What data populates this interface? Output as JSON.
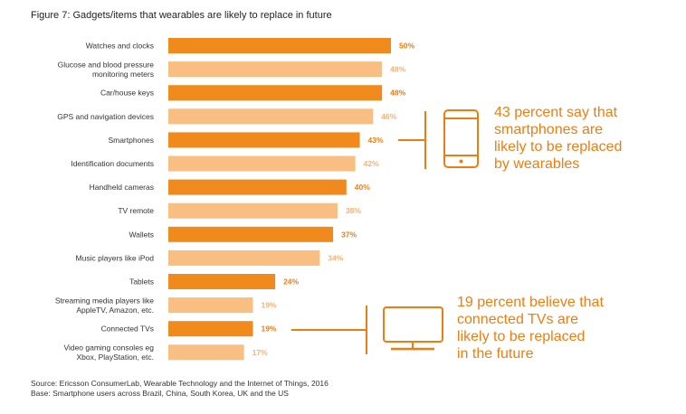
{
  "title": "Figure 7: Gadgets/items that wearables are likely to replace in future",
  "chart_data": {
    "type": "bar",
    "orientation": "horizontal",
    "title": "Figure 7: Gadgets/items that wearables are likely to replace in future",
    "categories": [
      [
        "Watches and clocks"
      ],
      [
        "Glucose and blood pressure",
        "monitoring meters"
      ],
      [
        "Car/house keys"
      ],
      [
        "GPS and navigation devices"
      ],
      [
        "Smartphones"
      ],
      [
        "Identification documents"
      ],
      [
        "Handheld cameras"
      ],
      [
        "TV remote"
      ],
      [
        "Wallets"
      ],
      [
        "Music players like iPod"
      ],
      [
        "Tablets"
      ],
      [
        "Streaming media players like",
        "AppleTV, Amazon, etc."
      ],
      [
        "Connected TVs"
      ],
      [
        "Video gaming consoles eg",
        "Xbox, PlayStation, etc."
      ]
    ],
    "values": [
      50,
      48,
      48,
      46,
      43,
      42,
      40,
      38,
      37,
      34,
      24,
      19,
      19,
      17
    ],
    "value_labels": [
      "50%",
      "48%",
      "48%",
      "46%",
      "43%",
      "42%",
      "40%",
      "38%",
      "37%",
      "34%",
      "24%",
      "19%",
      "19%",
      "17%"
    ],
    "xlim": [
      0,
      50
    ],
    "xlabel": "",
    "ylabel": "",
    "grid": false,
    "colors": {
      "dark": "#f08a1d",
      "light": "#f8be82",
      "dark_text": "#ee7d11",
      "light_text": "#f6b171"
    }
  },
  "callouts": [
    {
      "lines": [
        "43 percent say that",
        "smartphones are",
        "likely to be replaced",
        "by wearables"
      ],
      "icon": "smartphone-icon"
    },
    {
      "lines": [
        "19 percent believe that",
        "connected TVs are",
        "likely to be replaced",
        "in the future"
      ],
      "icon": "tv-icon"
    }
  ],
  "source": {
    "line1": "Source: Ericsson ConsumerLab, Wearable Technology and the Internet of Things, 2016",
    "line2": "Base: Smartphone users across Brazil, China, South Korea, UK and the US"
  }
}
